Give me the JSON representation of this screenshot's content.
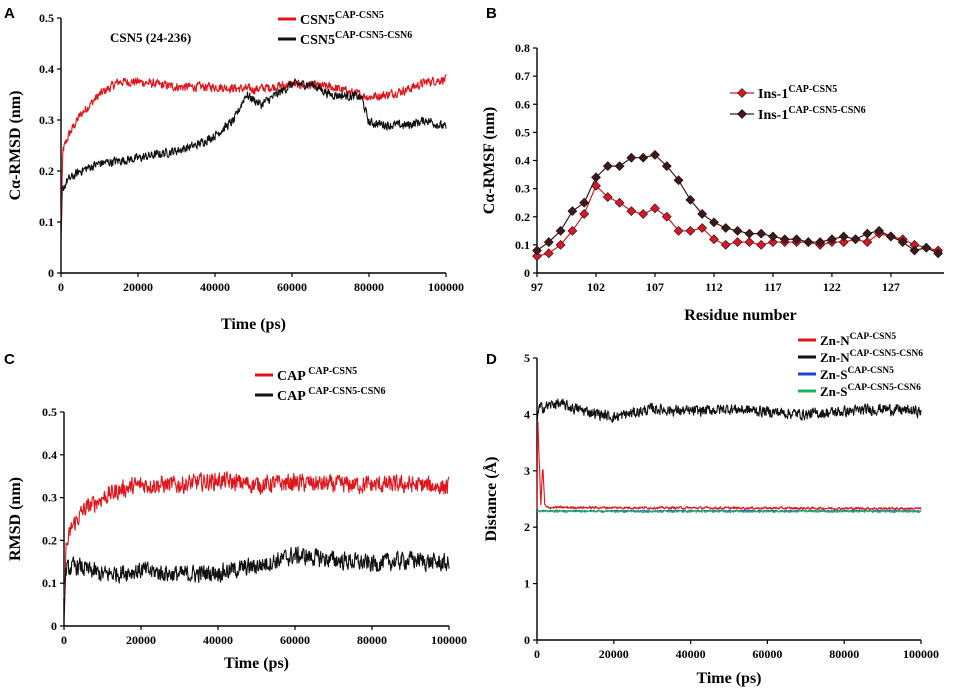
{
  "colors": {
    "red": "#e0141b",
    "black": "#111111",
    "blue": "#1f3fd6",
    "green": "#1fb35a",
    "marker_red": "#d11a2a",
    "marker_dark": "#3a1a1a"
  },
  "chart_data": [
    {
      "panel": "A",
      "type": "line",
      "title": "",
      "annotation": "CSN5 (24-236)",
      "xlabel": "Time (ps)",
      "ylabel": "Cα-RMSD (nm)",
      "xlim": [
        0,
        100000
      ],
      "ylim": [
        0,
        0.5
      ],
      "xticks": [
        0,
        20000,
        40000,
        60000,
        80000,
        100000
      ],
      "yticks": [
        0,
        0.1,
        0.2,
        0.3,
        0.4,
        0.5
      ],
      "xtick_labels": [
        "0",
        "20000",
        "40000",
        "60000",
        "80000",
        "100000"
      ],
      "ytick_labels": [
        "0",
        "0.1",
        "0.2",
        "0.3",
        "0.4",
        "0.5"
      ],
      "legend_position": "top-right",
      "noise": 0.012,
      "series": [
        {
          "name": "CSN5",
          "sup": "CAP-CSN5",
          "color": "red",
          "x": [
            0,
            500,
            2000,
            5000,
            10000,
            15000,
            20000,
            30000,
            40000,
            50000,
            60000,
            70000,
            80000,
            85000,
            90000,
            95000,
            100000
          ],
          "values": [
            0.1,
            0.24,
            0.27,
            0.31,
            0.35,
            0.375,
            0.375,
            0.365,
            0.365,
            0.36,
            0.37,
            0.365,
            0.345,
            0.35,
            0.36,
            0.375,
            0.38
          ]
        },
        {
          "name": "CSN5",
          "sup": "CAP-CSN5-CSN6",
          "color": "black",
          "x": [
            0,
            300,
            1500,
            5000,
            10000,
            20000,
            30000,
            35000,
            40000,
            45000,
            48000,
            52000,
            60000,
            65000,
            70000,
            78000,
            80000,
            85000,
            90000,
            95000,
            100000
          ],
          "values": [
            0.05,
            0.16,
            0.18,
            0.2,
            0.215,
            0.225,
            0.24,
            0.25,
            0.27,
            0.3,
            0.35,
            0.33,
            0.37,
            0.37,
            0.35,
            0.345,
            0.295,
            0.29,
            0.29,
            0.3,
            0.285
          ]
        }
      ]
    },
    {
      "panel": "B",
      "type": "line",
      "title": "",
      "annotation": "",
      "xlabel": "Residue number",
      "ylabel": "Cα-RMSF (nm)",
      "xlim": [
        97,
        131.5
      ],
      "ylim": [
        0,
        0.8
      ],
      "xticks": [
        97,
        102,
        107,
        112,
        117,
        122,
        127
      ],
      "yticks": [
        0,
        0.1,
        0.2,
        0.3,
        0.4,
        0.5,
        0.6,
        0.7,
        0.8
      ],
      "xtick_labels": [
        "97",
        "102",
        "107",
        "112",
        "117",
        "122",
        "127"
      ],
      "ytick_labels": [
        "0",
        "0.1",
        "0.2",
        "0.3",
        "0.4",
        "0.5",
        "0.6",
        "0.7",
        "0.8"
      ],
      "legend_position": "top-right",
      "markers": true,
      "series": [
        {
          "name": "Ins-1",
          "sup": "CAP-CSN5",
          "color": "marker_red",
          "x": [
            97,
            98,
            99,
            100,
            101,
            102,
            103,
            104,
            105,
            106,
            107,
            108,
            109,
            110,
            111,
            112,
            113,
            114,
            115,
            116,
            117,
            118,
            119,
            120,
            121,
            122,
            123,
            124,
            125,
            126,
            127,
            128,
            129,
            130,
            131
          ],
          "values": [
            0.06,
            0.07,
            0.1,
            0.15,
            0.21,
            0.31,
            0.27,
            0.25,
            0.22,
            0.21,
            0.23,
            0.2,
            0.15,
            0.15,
            0.16,
            0.12,
            0.1,
            0.11,
            0.11,
            0.1,
            0.11,
            0.11,
            0.11,
            0.11,
            0.1,
            0.11,
            0.11,
            0.12,
            0.11,
            0.14,
            0.13,
            0.12,
            0.1,
            0.09,
            0.08
          ]
        },
        {
          "name": "Ins-1",
          "sup": "CAP-CSN5-CSN6",
          "color": "marker_dark",
          "x": [
            97,
            98,
            99,
            100,
            101,
            102,
            103,
            104,
            105,
            106,
            107,
            108,
            109,
            110,
            111,
            112,
            113,
            114,
            115,
            116,
            117,
            118,
            119,
            120,
            121,
            122,
            123,
            124,
            125,
            126,
            127,
            128,
            129,
            130,
            131
          ],
          "values": [
            0.08,
            0.11,
            0.15,
            0.22,
            0.25,
            0.34,
            0.38,
            0.38,
            0.41,
            0.41,
            0.42,
            0.38,
            0.33,
            0.26,
            0.21,
            0.18,
            0.16,
            0.15,
            0.14,
            0.14,
            0.13,
            0.12,
            0.12,
            0.11,
            0.11,
            0.12,
            0.13,
            0.12,
            0.14,
            0.15,
            0.13,
            0.11,
            0.08,
            0.09,
            0.07
          ]
        }
      ]
    },
    {
      "panel": "C",
      "type": "line",
      "title": "",
      "annotation": "",
      "xlabel": "Time (ps)",
      "ylabel": "RMSD (nm)",
      "xlim": [
        0,
        100000
      ],
      "ylim": [
        0,
        0.5
      ],
      "xticks": [
        0,
        20000,
        40000,
        60000,
        80000,
        100000
      ],
      "yticks": [
        0,
        0.1,
        0.2,
        0.3,
        0.4,
        0.5
      ],
      "xtick_labels": [
        "0",
        "20000",
        "40000",
        "60000",
        "80000",
        "100000"
      ],
      "ytick_labels": [
        "0",
        "0.1",
        "0.2",
        "0.3",
        "0.4",
        "0.5"
      ],
      "legend_position": "top-right",
      "noise": 0.028,
      "series": [
        {
          "name": "CAP",
          "sup": "CAP-CSN5",
          "color": "red",
          "x": [
            0,
            500,
            2000,
            5000,
            10000,
            15000,
            20000,
            30000,
            40000,
            50000,
            60000,
            70000,
            80000,
            90000,
            100000
          ],
          "values": [
            0.05,
            0.18,
            0.23,
            0.27,
            0.3,
            0.32,
            0.33,
            0.33,
            0.34,
            0.33,
            0.335,
            0.33,
            0.33,
            0.33,
            0.325
          ]
        },
        {
          "name": "CAP",
          "sup": "CAP-CSN5-CSN6",
          "color": "black",
          "x": [
            0,
            500,
            3000,
            10000,
            20000,
            30000,
            40000,
            50000,
            60000,
            70000,
            80000,
            90000,
            100000
          ],
          "values": [
            0.03,
            0.13,
            0.14,
            0.12,
            0.13,
            0.12,
            0.125,
            0.14,
            0.165,
            0.155,
            0.145,
            0.155,
            0.145
          ]
        }
      ]
    },
    {
      "panel": "D",
      "type": "line",
      "title": "",
      "annotation": "",
      "xlabel": "Time (ps)",
      "ylabel": "Distance (Å)",
      "xlim": [
        0,
        100000
      ],
      "ylim": [
        0,
        5
      ],
      "xticks": [
        0,
        20000,
        40000,
        60000,
        80000,
        100000
      ],
      "yticks": [
        0,
        1,
        2,
        3,
        4,
        5
      ],
      "xtick_labels": [
        "0",
        "20000",
        "40000",
        "60000",
        "80000",
        "100000"
      ],
      "ytick_labels": [
        "0",
        "1",
        "2",
        "3",
        "4",
        "5"
      ],
      "legend_position": "top-right",
      "series": [
        {
          "name": "Zn-N",
          "sup": "CAP-CSN5",
          "color": "red",
          "noise": 0.03,
          "x": [
            0,
            200,
            1000,
            1500,
            2000,
            2500,
            3000,
            100000
          ],
          "values": [
            2.3,
            3.9,
            2.4,
            3.1,
            2.4,
            2.35,
            2.35,
            2.33
          ]
        },
        {
          "name": "Zn-N",
          "sup": "CAP-CSN5-CSN6",
          "color": "black",
          "noise": 0.13,
          "x": [
            0,
            500,
            5000,
            10000,
            20000,
            30000,
            40000,
            50000,
            60000,
            70000,
            80000,
            90000,
            100000
          ],
          "values": [
            3.9,
            4.1,
            4.2,
            4.1,
            3.95,
            4.1,
            4.05,
            4.1,
            4.05,
            4.0,
            4.05,
            4.1,
            4.05
          ]
        },
        {
          "name": "Zn-S",
          "sup": "CAP-CSN5",
          "color": "blue",
          "noise": 0.015,
          "x": [
            0,
            100000
          ],
          "values": [
            2.29,
            2.29
          ]
        },
        {
          "name": "Zn-S",
          "sup": "CAP-CSN5-CSN6",
          "color": "green",
          "noise": 0.025,
          "x": [
            0,
            100000
          ],
          "values": [
            2.28,
            2.28
          ]
        }
      ]
    }
  ]
}
